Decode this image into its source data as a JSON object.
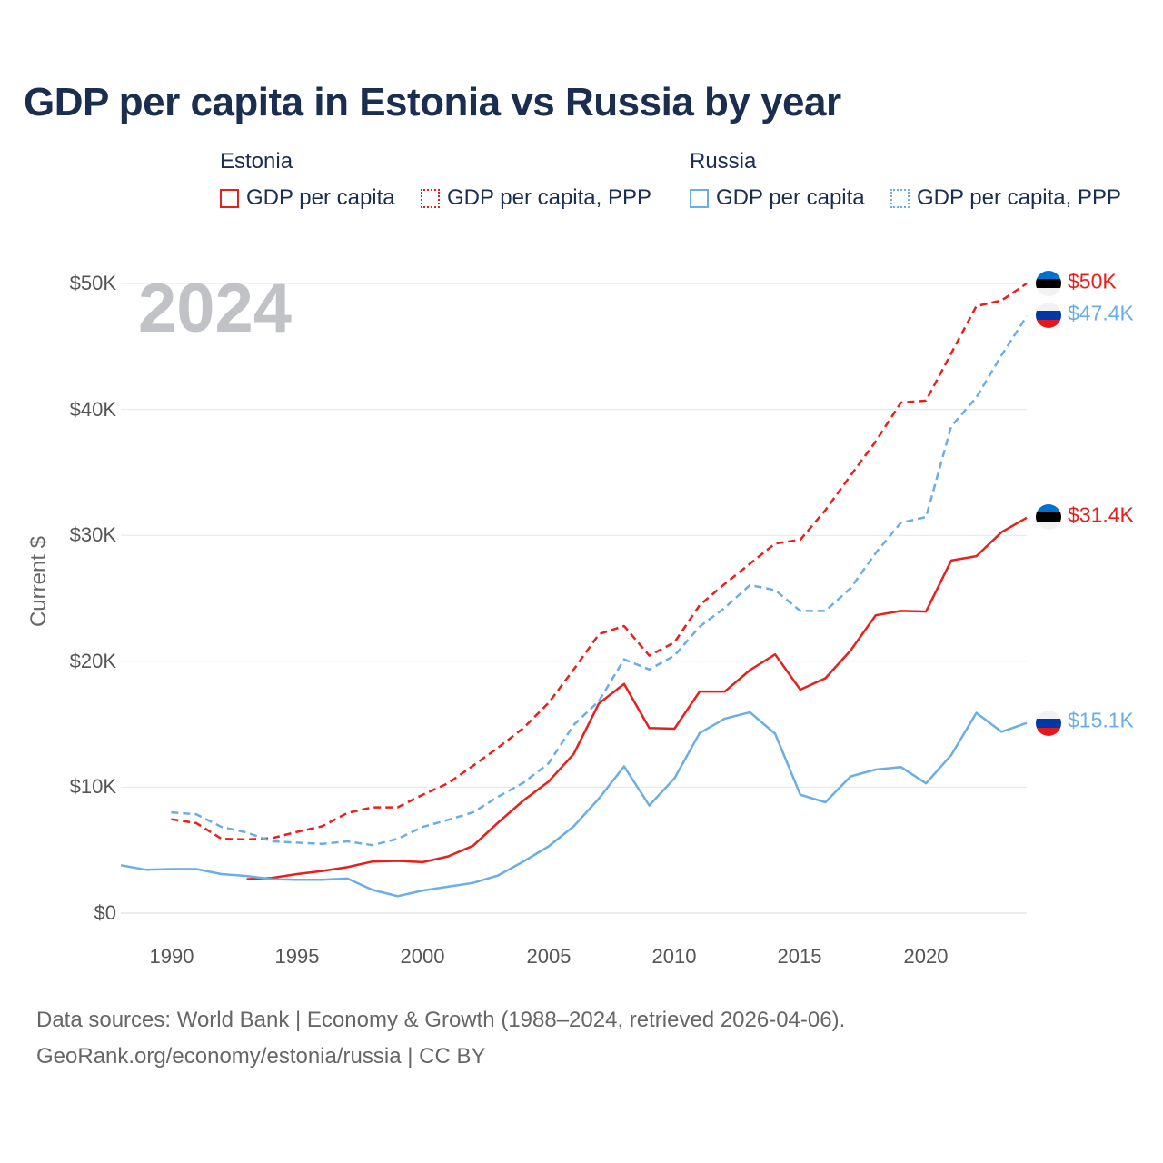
{
  "title": "GDP per capita in Estonia vs Russia by year",
  "legend": {
    "groups": [
      {
        "country": "Estonia",
        "items": [
          "GDP per capita",
          "GDP per capita, PPP"
        ]
      },
      {
        "country": "Russia",
        "items": [
          "GDP per capita",
          "GDP per capita, PPP"
        ]
      }
    ]
  },
  "year_watermark": "2024",
  "colors": {
    "estonia": "#e8201c",
    "russia": "#6aaee6",
    "grid": "#e6e6e6",
    "title": "#1a2e4f"
  },
  "chart_data": {
    "type": "line",
    "title": "GDP per capita in Estonia vs Russia by year",
    "xlabel": "",
    "ylabel": "Current $",
    "xlim": [
      1988,
      2024
    ],
    "ylim": [
      0,
      50000
    ],
    "x_ticks": [
      1990,
      1995,
      2000,
      2005,
      2010,
      2015,
      2020
    ],
    "x_tick_labels": [
      "1990",
      "1995",
      "2000",
      "2005",
      "2010",
      "2015",
      "2020"
    ],
    "y_ticks": [
      0,
      10000,
      20000,
      30000,
      40000,
      50000
    ],
    "y_tick_labels": [
      "$0",
      "$10K",
      "$20K",
      "$30K",
      "$40K",
      "$50K"
    ],
    "grid": true,
    "legend_position": "top",
    "series": [
      {
        "name": "Estonia GDP per capita",
        "country": "estonia",
        "style": "solid",
        "end_label": "$31.4K",
        "points": [
          [
            1993,
            2700
          ],
          [
            1994,
            2800
          ],
          [
            1995,
            3100
          ],
          [
            1996,
            3350
          ],
          [
            1997,
            3650
          ],
          [
            1998,
            4100
          ],
          [
            1999,
            4150
          ],
          [
            2000,
            4050
          ],
          [
            2001,
            4500
          ],
          [
            2002,
            5350
          ],
          [
            2003,
            7200
          ],
          [
            2004,
            8950
          ],
          [
            2005,
            10450
          ],
          [
            2006,
            12650
          ],
          [
            2007,
            16650
          ],
          [
            2008,
            18200
          ],
          [
            2009,
            14700
          ],
          [
            2010,
            14650
          ],
          [
            2011,
            17600
          ],
          [
            2012,
            17600
          ],
          [
            2013,
            19300
          ],
          [
            2014,
            20550
          ],
          [
            2015,
            17750
          ],
          [
            2016,
            18650
          ],
          [
            2017,
            20850
          ],
          [
            2018,
            23650
          ],
          [
            2019,
            24000
          ],
          [
            2020,
            23950
          ],
          [
            2021,
            28000
          ],
          [
            2022,
            28350
          ],
          [
            2023,
            30250
          ],
          [
            2024,
            31400
          ]
        ]
      },
      {
        "name": "Estonia GDP per capita, PPP",
        "country": "estonia",
        "style": "dashed",
        "end_label": "$50K",
        "points": [
          [
            1990,
            7450
          ],
          [
            1991,
            7150
          ],
          [
            1992,
            5900
          ],
          [
            1993,
            5850
          ],
          [
            1994,
            5950
          ],
          [
            1995,
            6450
          ],
          [
            1996,
            6900
          ],
          [
            1997,
            7950
          ],
          [
            1998,
            8400
          ],
          [
            1999,
            8400
          ],
          [
            2000,
            9400
          ],
          [
            2001,
            10300
          ],
          [
            2002,
            11700
          ],
          [
            2003,
            13150
          ],
          [
            2004,
            14700
          ],
          [
            2005,
            16700
          ],
          [
            2006,
            19350
          ],
          [
            2007,
            22150
          ],
          [
            2008,
            22800
          ],
          [
            2009,
            20450
          ],
          [
            2010,
            21500
          ],
          [
            2011,
            24450
          ],
          [
            2012,
            26150
          ],
          [
            2013,
            27750
          ],
          [
            2014,
            29350
          ],
          [
            2015,
            29650
          ],
          [
            2016,
            32000
          ],
          [
            2017,
            34750
          ],
          [
            2018,
            37450
          ],
          [
            2019,
            40550
          ],
          [
            2020,
            40700
          ],
          [
            2021,
            44450
          ],
          [
            2022,
            48200
          ],
          [
            2023,
            48650
          ],
          [
            2024,
            50000
          ]
        ]
      },
      {
        "name": "Russia GDP per capita",
        "country": "russia",
        "style": "solid",
        "end_label": "$15.1K",
        "points": [
          [
            1988,
            3800
          ],
          [
            1989,
            3450
          ],
          [
            1990,
            3500
          ],
          [
            1991,
            3500
          ],
          [
            1992,
            3100
          ],
          [
            1993,
            2950
          ],
          [
            1994,
            2700
          ],
          [
            1995,
            2650
          ],
          [
            1996,
            2650
          ],
          [
            1997,
            2750
          ],
          [
            1998,
            1850
          ],
          [
            1999,
            1350
          ],
          [
            2000,
            1800
          ],
          [
            2001,
            2100
          ],
          [
            2002,
            2400
          ],
          [
            2003,
            3000
          ],
          [
            2004,
            4100
          ],
          [
            2005,
            5300
          ],
          [
            2006,
            6900
          ],
          [
            2007,
            9100
          ],
          [
            2008,
            11650
          ],
          [
            2009,
            8550
          ],
          [
            2010,
            10700
          ],
          [
            2011,
            14300
          ],
          [
            2012,
            15450
          ],
          [
            2013,
            15950
          ],
          [
            2014,
            14250
          ],
          [
            2015,
            9400
          ],
          [
            2016,
            8800
          ],
          [
            2017,
            10850
          ],
          [
            2018,
            11400
          ],
          [
            2019,
            11600
          ],
          [
            2020,
            10300
          ],
          [
            2021,
            12550
          ],
          [
            2022,
            15900
          ],
          [
            2023,
            14400
          ],
          [
            2024,
            15100
          ]
        ]
      },
      {
        "name": "Russia GDP per capita, PPP",
        "country": "russia",
        "style": "dashed",
        "end_label": "$47.4K",
        "points": [
          [
            1990,
            8000
          ],
          [
            1991,
            7850
          ],
          [
            1992,
            6850
          ],
          [
            1993,
            6400
          ],
          [
            1994,
            5700
          ],
          [
            1995,
            5600
          ],
          [
            1996,
            5500
          ],
          [
            1997,
            5700
          ],
          [
            1998,
            5400
          ],
          [
            1999,
            5900
          ],
          [
            2000,
            6850
          ],
          [
            2001,
            7400
          ],
          [
            2002,
            8000
          ],
          [
            2003,
            9250
          ],
          [
            2004,
            10350
          ],
          [
            2005,
            11900
          ],
          [
            2006,
            14950
          ],
          [
            2007,
            16850
          ],
          [
            2008,
            20150
          ],
          [
            2009,
            19350
          ],
          [
            2010,
            20450
          ],
          [
            2011,
            22750
          ],
          [
            2012,
            24250
          ],
          [
            2013,
            26050
          ],
          [
            2014,
            25650
          ],
          [
            2015,
            24000
          ],
          [
            2016,
            24000
          ],
          [
            2017,
            25800
          ],
          [
            2018,
            28600
          ],
          [
            2019,
            31000
          ],
          [
            2020,
            31450
          ],
          [
            2021,
            38650
          ],
          [
            2022,
            40950
          ],
          [
            2023,
            44300
          ],
          [
            2024,
            47400
          ]
        ]
      }
    ]
  },
  "source": {
    "line1": "Data sources: World Bank | Economy & Growth (1988–2024, retrieved 2026-04-06).",
    "line2": "GeoRank.org/economy/estonia/russia | CC BY"
  }
}
